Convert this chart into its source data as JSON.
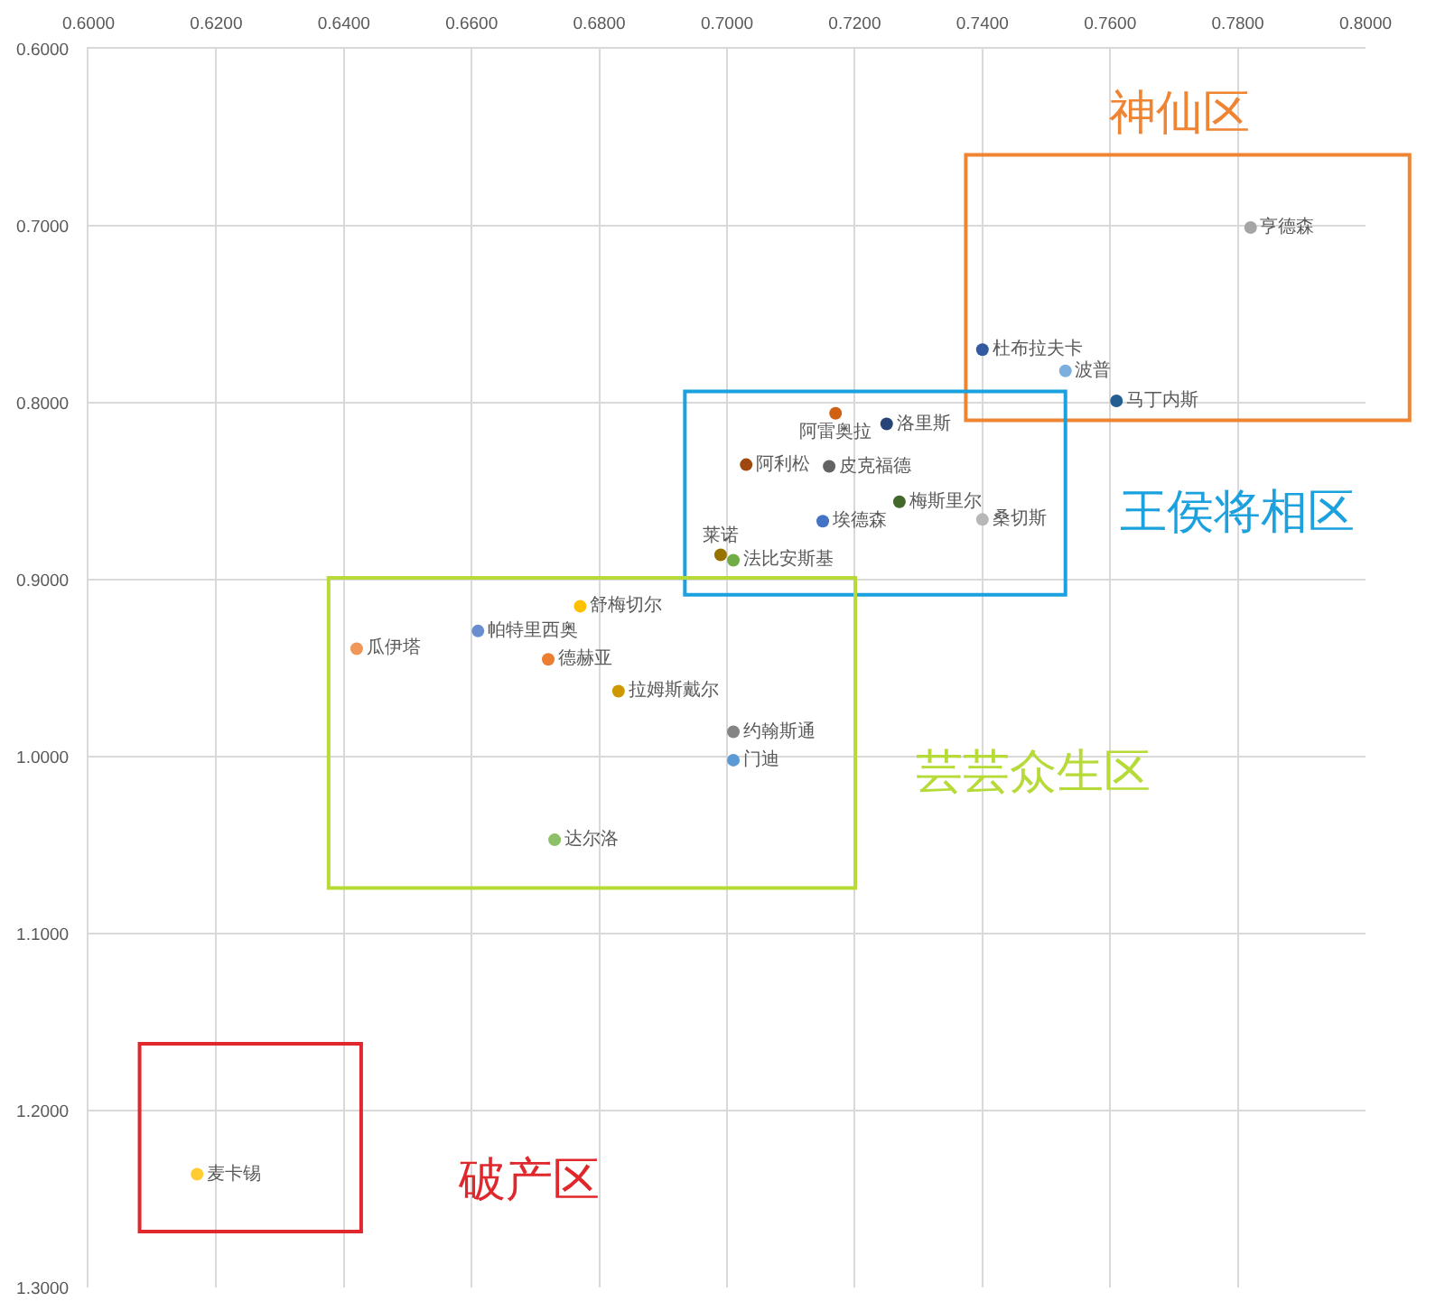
{
  "chart_data": {
    "type": "scatter",
    "series": [
      {
        "name": "亨德森",
        "color": "#a5a5a5",
        "x": [
          0.782
        ],
        "values": [
          0.701
        ]
      },
      {
        "name": "杜布拉夫卡",
        "color": "#335aa1",
        "x": [
          0.74
        ],
        "values": [
          0.77
        ]
      },
      {
        "name": "波普",
        "color": "#7cafdd",
        "x": [
          0.753
        ],
        "values": [
          0.782
        ]
      },
      {
        "name": "马丁内斯",
        "color": "#255e91",
        "x": [
          0.761
        ],
        "values": [
          0.799
        ]
      },
      {
        "name": "阿雷奥拉",
        "color": "#d26012",
        "x": [
          0.717
        ],
        "values": [
          0.806
        ]
      },
      {
        "name": "洛里斯",
        "color": "#264478",
        "x": [
          0.725
        ],
        "values": [
          0.812
        ]
      },
      {
        "name": "阿利松",
        "color": "#9e480e",
        "x": [
          0.703
        ],
        "values": [
          0.835
        ]
      },
      {
        "name": "皮克福德",
        "color": "#636363",
        "x": [
          0.716
        ],
        "values": [
          0.836
        ]
      },
      {
        "name": "梅斯里尔",
        "color": "#43682b",
        "x": [
          0.727
        ],
        "values": [
          0.856
        ]
      },
      {
        "name": "埃德森",
        "color": "#4472c4",
        "x": [
          0.715
        ],
        "values": [
          0.867
        ]
      },
      {
        "name": "桑切斯",
        "color": "#b7b7b7",
        "x": [
          0.74
        ],
        "values": [
          0.866
        ]
      },
      {
        "name": "莱诺",
        "color": "#997300",
        "x": [
          0.699
        ],
        "values": [
          0.886
        ]
      },
      {
        "name": "法比安斯基",
        "color": "#70ad47",
        "x": [
          0.701
        ],
        "values": [
          0.889
        ]
      },
      {
        "name": "舒梅切尔",
        "color": "#ffc000",
        "x": [
          0.677
        ],
        "values": [
          0.915
        ]
      },
      {
        "name": "帕特里西奥",
        "color": "#698ed0",
        "x": [
          0.661
        ],
        "values": [
          0.929
        ]
      },
      {
        "name": "瓜伊塔",
        "color": "#f1975a",
        "x": [
          0.642
        ],
        "values": [
          0.939
        ]
      },
      {
        "name": "德赫亚",
        "color": "#ed7d31",
        "x": [
          0.672
        ],
        "values": [
          0.945
        ]
      },
      {
        "name": "拉姆斯戴尔",
        "color": "#cc9a00",
        "x": [
          0.683
        ],
        "values": [
          0.963
        ]
      },
      {
        "name": "约翰斯通",
        "color": "#848484",
        "x": [
          0.701
        ],
        "values": [
          0.986
        ]
      },
      {
        "name": "门迪",
        "color": "#5b9bd5",
        "x": [
          0.701
        ],
        "values": [
          1.002
        ]
      },
      {
        "name": "达尔洛",
        "color": "#8cc168",
        "x": [
          0.673
        ],
        "values": [
          1.047
        ]
      },
      {
        "name": "麦卡锡",
        "color": "#ffcd33",
        "x": [
          0.617
        ],
        "values": [
          1.236
        ]
      }
    ],
    "xlim": [
      0.6,
      0.8
    ],
    "xticks": [
      {
        "value": 0.6,
        "label": "0.6000"
      },
      {
        "value": 0.62,
        "label": "0.6200"
      },
      {
        "value": 0.64,
        "label": "0.6400"
      },
      {
        "value": 0.66,
        "label": "0.6600"
      },
      {
        "value": 0.68,
        "label": "0.6800"
      },
      {
        "value": 0.7,
        "label": "0.7000"
      },
      {
        "value": 0.72,
        "label": "0.7200"
      },
      {
        "value": 0.74,
        "label": "0.7400"
      },
      {
        "value": 0.76,
        "label": "0.7600"
      },
      {
        "value": 0.78,
        "label": "0.7800"
      },
      {
        "value": 0.8,
        "label": "0.8000"
      }
    ],
    "ylim": [
      1.3,
      0.6
    ],
    "yticks": [
      {
        "value": 0.6,
        "label": "0.6000"
      },
      {
        "value": 0.7,
        "label": "0.7000"
      },
      {
        "value": 0.8,
        "label": "0.8000"
      },
      {
        "value": 0.9,
        "label": "0.9000"
      },
      {
        "value": 1.0,
        "label": "1.0000"
      },
      {
        "value": 1.1,
        "label": "1.1000"
      },
      {
        "value": 1.2,
        "label": "1.2000"
      },
      {
        "value": 1.3,
        "label": "1.3000"
      }
    ],
    "grid": true,
    "legend": false,
    "marker": "circle",
    "annotations": [
      "神仙区",
      "王侯将相区",
      "芸芸众生区",
      "破产区"
    ]
  }
}
